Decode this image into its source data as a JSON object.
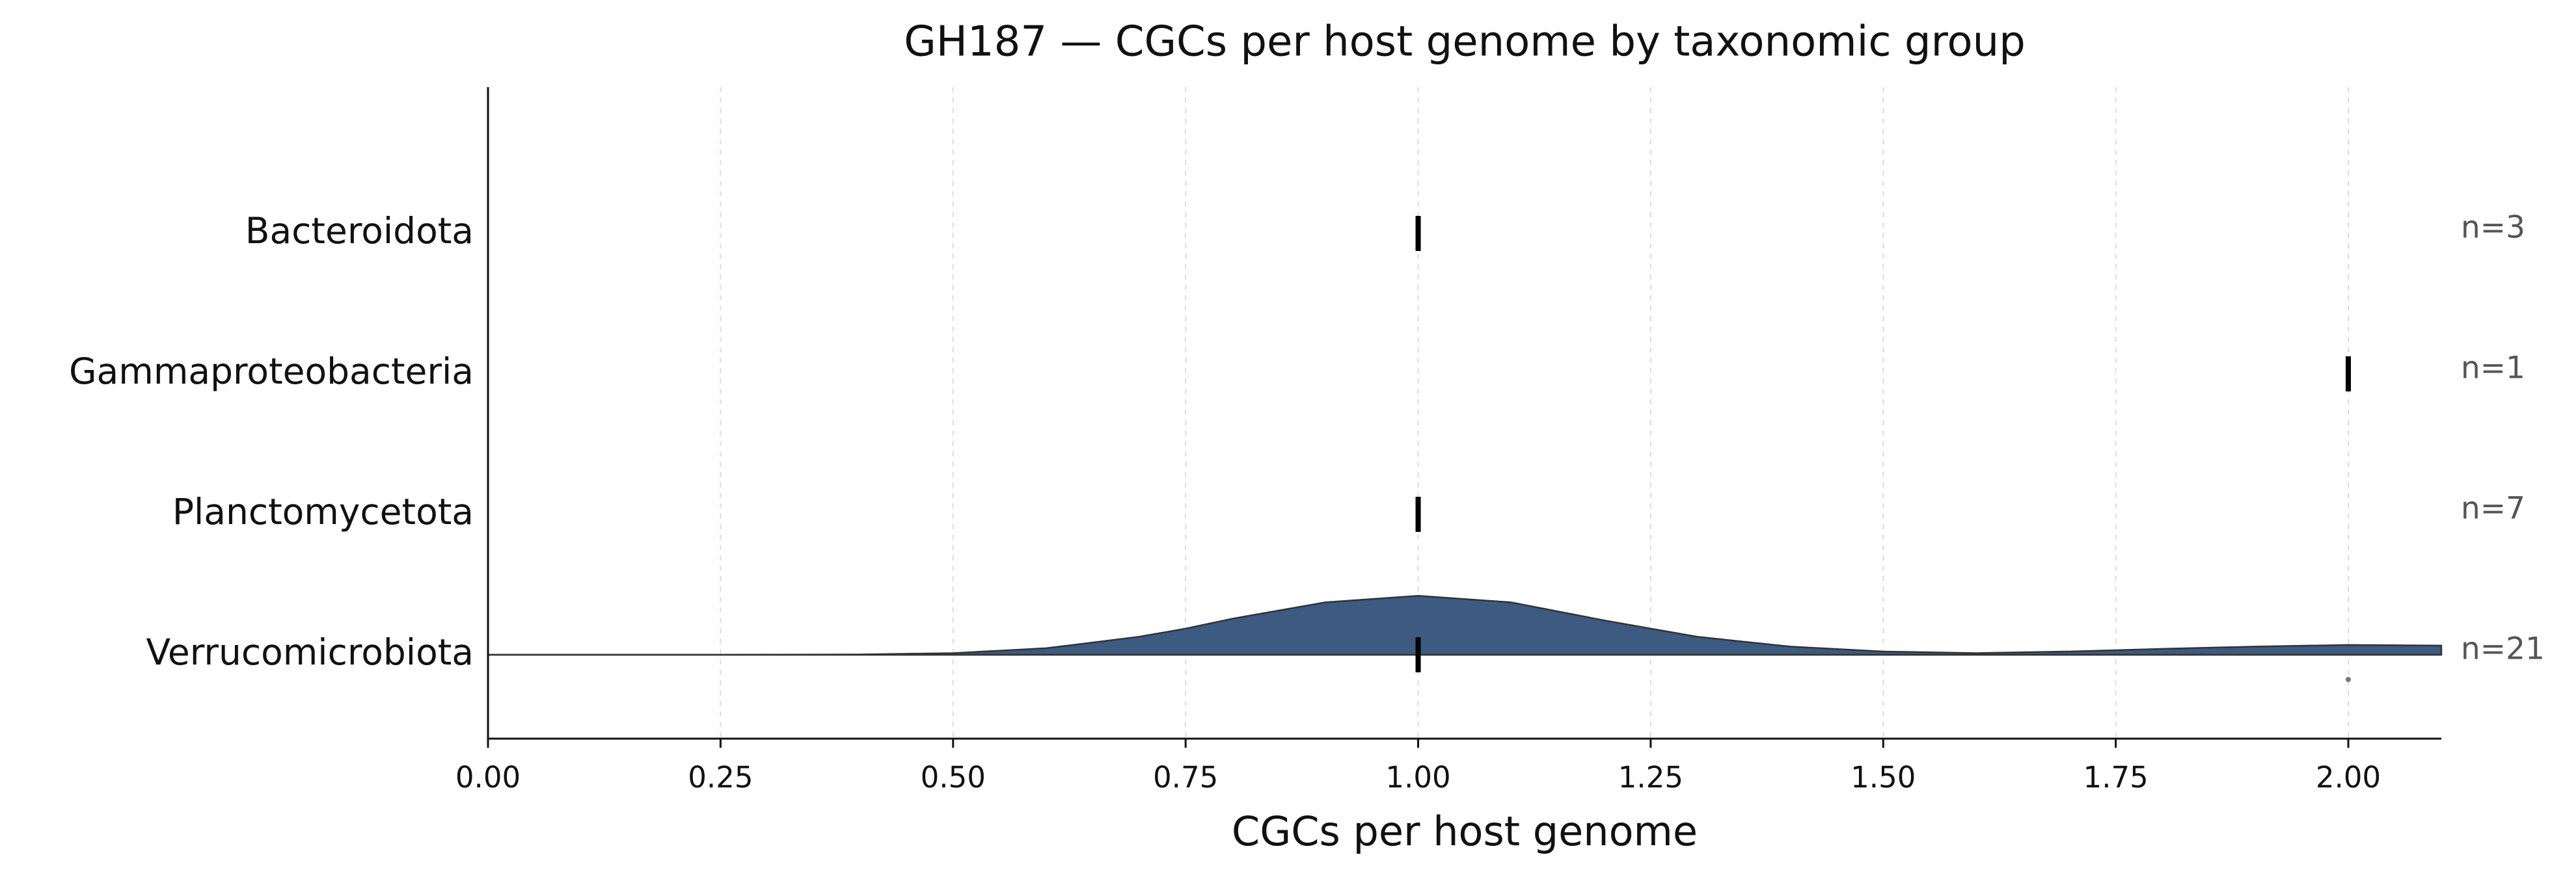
{
  "chart_data": {
    "type": "ridgeline",
    "title": "GH187 — CGCs per host genome by taxonomic group",
    "xlabel": "CGCs per host genome",
    "categories": [
      "Bacteroidota",
      "Gammaproteobacteria",
      "Planctomycetota",
      "Verrucomicrobiota"
    ],
    "n_labels": [
      "n=3",
      "n=1",
      "n=7",
      "n=21"
    ],
    "medians": [
      1,
      2,
      1,
      1
    ],
    "density": [
      null,
      null,
      null,
      {
        "x": [
          0,
          0.25,
          0.4,
          0.5,
          0.6,
          0.7,
          0.75,
          0.8,
          0.9,
          1.0,
          1.1,
          1.2,
          1.25,
          1.3,
          1.4,
          1.5,
          1.6,
          1.7,
          1.8,
          1.9,
          2.0,
          2.1
        ],
        "values": [
          0,
          0.001,
          0.01,
          0.05,
          0.2,
          0.55,
          0.8,
          1.1,
          1.6,
          1.8,
          1.6,
          1.05,
          0.8,
          0.55,
          0.25,
          0.1,
          0.05,
          0.1,
          0.18,
          0.25,
          0.3,
          0.28
        ]
      }
    ],
    "outliers": [
      [],
      [],
      [],
      [
        2
      ]
    ],
    "color": "#3d5a80",
    "xlim": [
      0,
      2.1
    ],
    "xticks": [
      {
        "value": 0,
        "label": "0.00"
      },
      {
        "value": 0.25,
        "label": "0.25"
      },
      {
        "value": 0.5,
        "label": "0.50"
      },
      {
        "value": 0.75,
        "label": "0.75"
      },
      {
        "value": 1,
        "label": "1.00"
      },
      {
        "value": 1.25,
        "label": "1.25"
      },
      {
        "value": 1.5,
        "label": "1.50"
      },
      {
        "value": 1.75,
        "label": "1.75"
      },
      {
        "value": 2,
        "label": "2.00"
      }
    ],
    "grid": true
  }
}
